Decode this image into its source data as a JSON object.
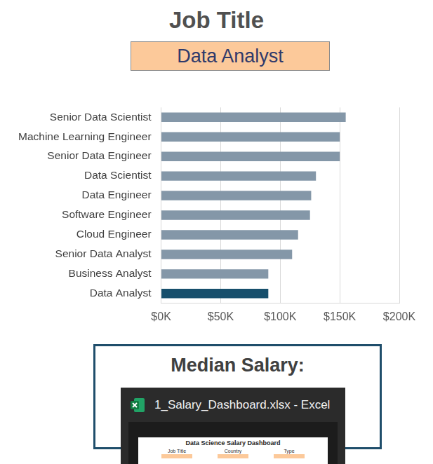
{
  "chart_data": {
    "type": "bar",
    "orientation": "horizontal",
    "categories": [
      "Senior Data Scientist",
      "Machine Learning Engineer",
      "Senior Data Engineer",
      "Data Scientist",
      "Data Engineer",
      "Software Engineer",
      "Cloud Engineer",
      "Senior Data Analyst",
      "Business Analyst",
      "Data Analyst"
    ],
    "values": [
      155000,
      150000,
      150000,
      130000,
      126000,
      125000,
      115000,
      110000,
      90000,
      90000
    ],
    "colors": [
      "#8497a8",
      "#8497a8",
      "#8497a8",
      "#8497a8",
      "#8497a8",
      "#8497a8",
      "#8497a8",
      "#8497a8",
      "#8497a8",
      "#174f6c"
    ],
    "xlim": [
      0,
      200000
    ],
    "xticks": [
      {
        "value": 0,
        "label": "$0K"
      },
      {
        "value": 50000,
        "label": "$50K"
      },
      {
        "value": 100000,
        "label": "$100K"
      },
      {
        "value": 150000,
        "label": "$150K"
      },
      {
        "value": 200000,
        "label": "$200K"
      }
    ],
    "grid": true
  },
  "header": {
    "title": "Job Title",
    "selected": "Data Analyst"
  },
  "summary": {
    "title": "Median Salary:"
  },
  "taskbar_preview": {
    "caption": "1_Salary_Dashboard.xlsx - Excel",
    "screenshot": {
      "title": "Data Science Salary Dashboard",
      "filters": [
        "Job Title",
        "Country",
        "Type"
      ]
    }
  }
}
